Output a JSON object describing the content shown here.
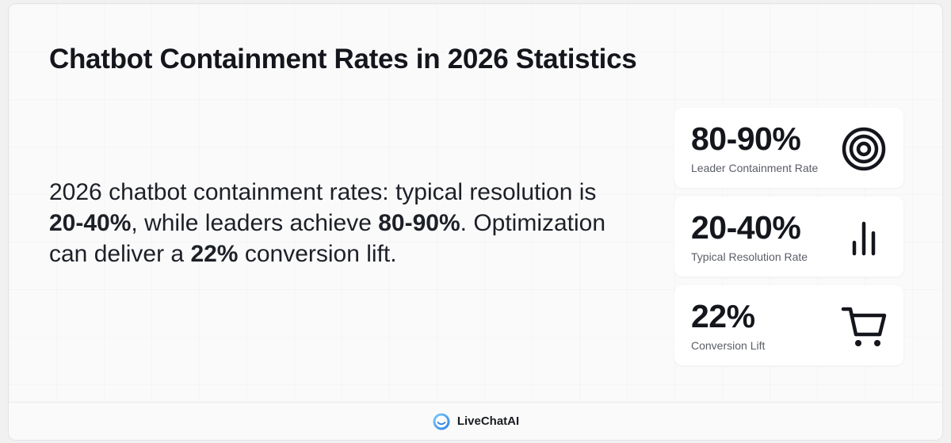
{
  "title": "Chatbot Containment Rates in 2026 Statistics",
  "summary": {
    "part1": "2026 chatbot containment rates: typical resolution is ",
    "bold1": "20-40%",
    "part2": ", while leaders achieve ",
    "bold2": "80-90%",
    "part3": ". Optimization can deliver a ",
    "bold3": "22%",
    "part4": " conversion lift."
  },
  "cards": [
    {
      "value": "80-90%",
      "label": "Leader Containment Rate",
      "icon": "target-icon"
    },
    {
      "value": "20-40%",
      "label": "Typical Resolution Rate",
      "icon": "bar-chart-icon"
    },
    {
      "value": "22%",
      "label": "Conversion Lift",
      "icon": "shopping-cart-icon"
    }
  ],
  "footer": {
    "brand": "LiveChatAI"
  },
  "colors": {
    "text": "#14161c",
    "muted": "#5a5e66",
    "card_bg": "#ffffff",
    "logo_accent": "#4aa8ff"
  }
}
